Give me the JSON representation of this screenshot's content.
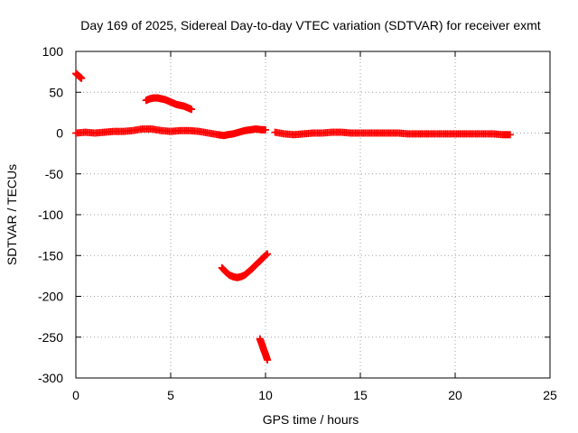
{
  "chart_data": {
    "type": "scatter",
    "title": "Day 169 of 2025, Sidereal Day-to-day VTEC variation (SDTVAR) for receiver exmt",
    "xlabel": "GPS time / hours",
    "ylabel": "SDTVAR / TECUs",
    "xlim": [
      0,
      25
    ],
    "ylim": [
      -300,
      100
    ],
    "xticks": [
      0,
      5,
      10,
      15,
      20,
      25
    ],
    "yticks": [
      -300,
      -250,
      -200,
      -150,
      -100,
      -50,
      0,
      50,
      100
    ],
    "grid": true,
    "marker": "+",
    "color": "#ff0000",
    "series": [
      {
        "name": "SDTVAR",
        "segments": [
          {
            "x": [
              0.0,
              0.1,
              0.2,
              0.3
            ],
            "y": [
              73,
              71,
              69,
              67
            ]
          },
          {
            "x": [
              0.0,
              0.5,
              1.0,
              1.5,
              2.0,
              2.5,
              3.0,
              3.5,
              4.0,
              4.5,
              5.0,
              5.5,
              6.0,
              6.5,
              7.0,
              7.5,
              7.8,
              8.0,
              8.3,
              8.6,
              8.9,
              9.2,
              9.5,
              9.8,
              10.0
            ],
            "y": [
              0,
              1,
              0,
              1,
              2,
              2,
              3,
              5,
              5,
              3,
              2,
              3,
              3,
              2,
              0,
              -2,
              -3,
              -2,
              -1,
              1,
              3,
              4,
              5,
              4,
              4
            ]
          },
          {
            "x": [
              10.5,
              11.0,
              11.5,
              12.0,
              12.5,
              13.0,
              13.5,
              14.0,
              14.5,
              15.0,
              15.5,
              16.0,
              16.5,
              17.0,
              17.5,
              18.0,
              18.5,
              19.0,
              19.5,
              20.0,
              20.5,
              21.0,
              21.5,
              22.0,
              22.5,
              22.9
            ],
            "y": [
              1,
              -1,
              -2,
              -1,
              0,
              0,
              1,
              1,
              0,
              0,
              0,
              0,
              0,
              0,
              -1,
              -1,
              -1,
              -1,
              -1,
              -1,
              -1,
              -1,
              -1,
              -1,
              -2,
              -2
            ]
          },
          {
            "x": [
              3.7,
              3.9,
              4.1,
              4.3,
              4.5,
              4.7,
              4.9,
              5.1,
              5.3,
              5.5,
              5.7,
              5.9,
              6.1
            ],
            "y": [
              40,
              42,
              43,
              43,
              42,
              41,
              39,
              37,
              35,
              34,
              33,
              31,
              29
            ]
          },
          {
            "x": [
              7.7,
              7.9,
              8.1,
              8.3,
              8.5,
              8.7,
              8.9,
              9.1,
              9.3,
              9.5,
              9.7,
              9.9,
              10.1
            ],
            "y": [
              -165,
              -170,
              -174,
              -176,
              -177,
              -176,
              -174,
              -170,
              -166,
              -161,
              -157,
              -152,
              -148
            ]
          },
          {
            "x": [
              9.7,
              9.8,
              9.9,
              10.0,
              10.1
            ],
            "y": [
              -252,
              -258,
              -265,
              -271,
              -278
            ]
          }
        ]
      }
    ]
  }
}
